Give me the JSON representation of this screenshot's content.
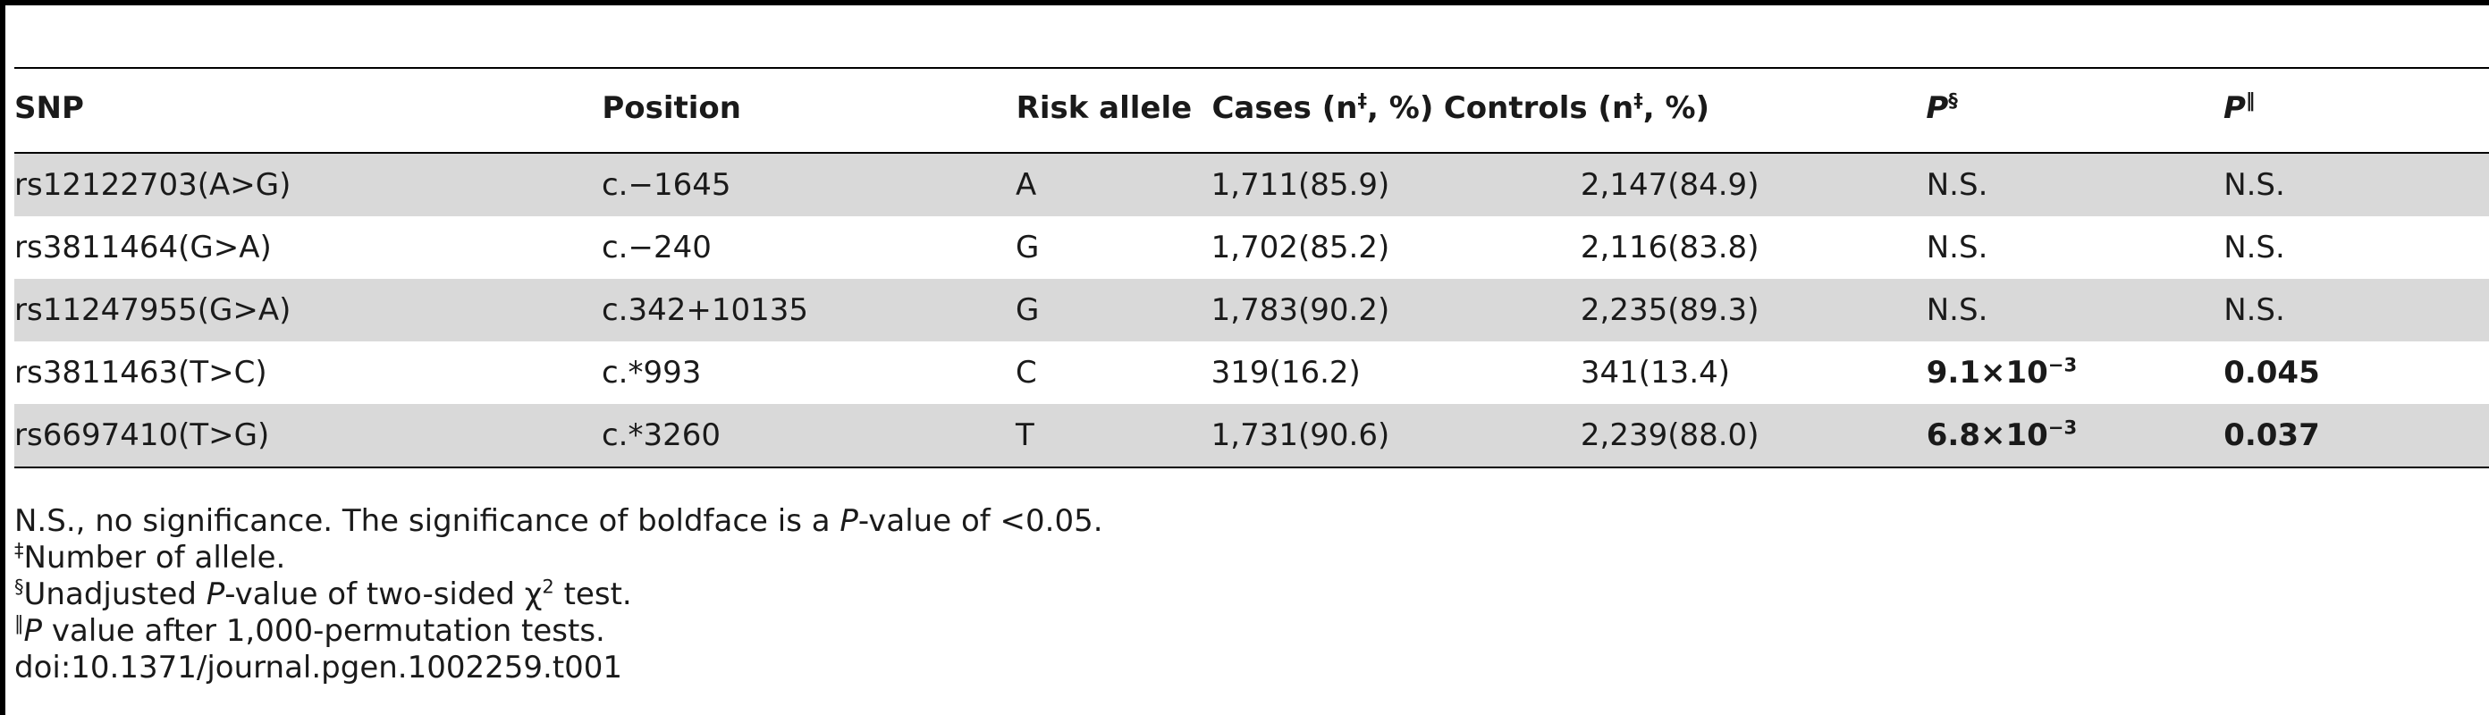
{
  "table": {
    "headers": {
      "snp": "SNP",
      "position": "Position",
      "risk_allele": "Risk allele",
      "cases": "Cases (n",
      "cases_sup": "‡",
      "cases_tail": ", %)",
      "controls": "Controls (n",
      "controls_sup": "‡",
      "controls_tail": ", %)",
      "p1": "P",
      "p1_sup": "§",
      "p2": "P",
      "p2_sup": "‖"
    },
    "rows": [
      {
        "snp": "rs12122703(A>G)",
        "position": "c.−1645",
        "risk": "A",
        "cases": "1,711(85.9)",
        "controls": "2,147(84.9)",
        "p1": "N.S.",
        "p2": "N.S."
      },
      {
        "snp": "rs3811464(G>A)",
        "position": "c.−240",
        "risk": "G",
        "cases": "1,702(85.2)",
        "controls": "2,116(83.8)",
        "p1": "N.S.",
        "p2": "N.S."
      },
      {
        "snp": "rs11247955(G>A)",
        "position": "c.342+10135",
        "risk": "G",
        "cases": "1,783(90.2)",
        "controls": "2,235(89.3)",
        "p1": "N.S.",
        "p2": "N.S."
      },
      {
        "snp": "rs3811463(T>C)",
        "position": "c.*993",
        "risk": "C",
        "cases": "319(16.2)",
        "controls": "341(13.4)",
        "p1_base": "9.1×10",
        "p1_exp": "−3",
        "p2": "0.045"
      },
      {
        "snp": "rs6697410(T>G)",
        "position": "c.*3260",
        "risk": "T",
        "cases": "1,731(90.6)",
        "controls": "2,239(88.0)",
        "p1_base": "6.8×10",
        "p1_exp": "−3",
        "p2": "0.037"
      }
    ]
  },
  "notes": {
    "n1_a": "N.S., no significance. The significance of boldface is a ",
    "n1_p": "P",
    "n1_b": "-value of <0.05.",
    "n2_sup": "‡",
    "n2": "Number of allele.",
    "n3_sup": "§",
    "n3_a": "Unadjusted ",
    "n3_p": "P",
    "n3_b": "-value of two-sided χ",
    "n3_sq": "2",
    "n3_c": " test.",
    "n4_sup": "‖",
    "n4_p": "P",
    "n4_b": " value after 1,000-permutation tests.",
    "n5": "doi:10.1371/journal.pgen.1002259.t001"
  }
}
